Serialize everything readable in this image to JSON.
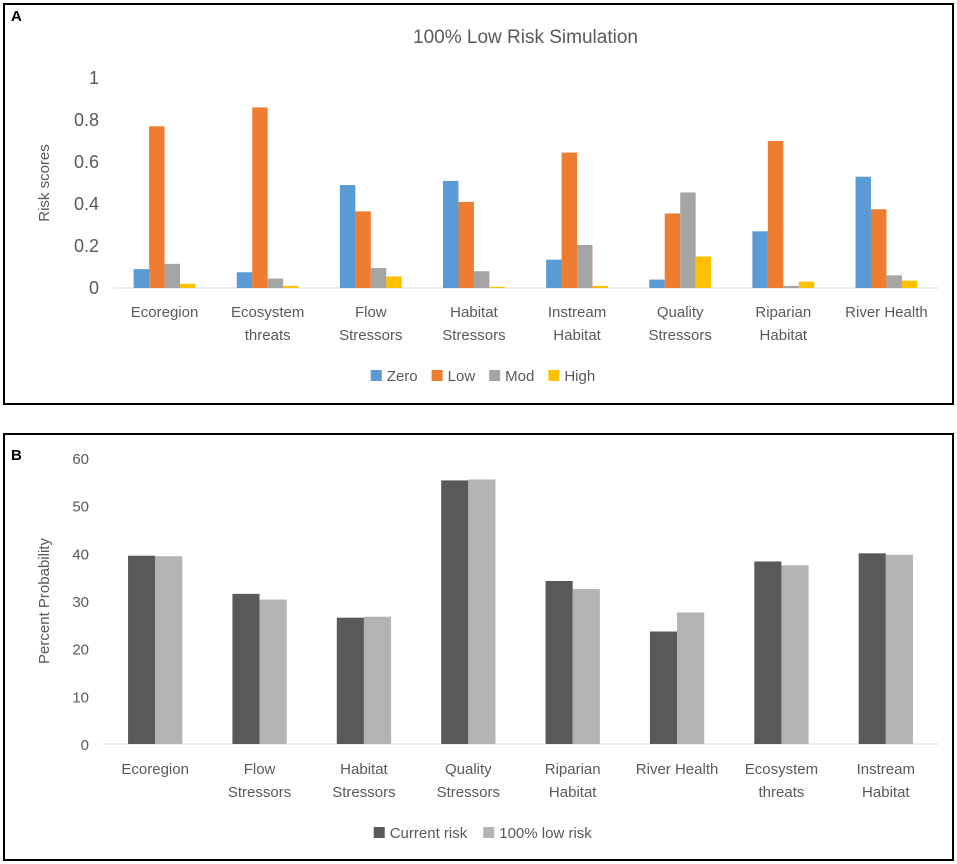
{
  "chart_data": [
    {
      "panel_label": "A",
      "type": "bar",
      "title": "100% Low Risk Simulation",
      "xlabel": "",
      "ylabel": "Risk scores",
      "ylim": [
        0,
        1
      ],
      "yticks": [
        "0",
        "0.2",
        "0.4",
        "0.6",
        "0.8",
        "1"
      ],
      "categories": [
        [
          "Ecoregion"
        ],
        [
          "Ecosystem",
          "threats"
        ],
        [
          "Flow",
          "Stressors"
        ],
        [
          "Habitat",
          "Stressors"
        ],
        [
          "Instream",
          "Habitat"
        ],
        [
          "Quality",
          "Stressors"
        ],
        [
          "Riparian",
          "Habitat"
        ],
        [
          "River Health"
        ]
      ],
      "series": [
        {
          "name": "Zero",
          "color": "#5b9bd5",
          "values": [
            0.09,
            0.075,
            0.49,
            0.51,
            0.135,
            0.04,
            0.27,
            0.53
          ]
        },
        {
          "name": "Low",
          "color": "#ed7d31",
          "values": [
            0.77,
            0.86,
            0.365,
            0.41,
            0.645,
            0.355,
            0.7,
            0.375
          ]
        },
        {
          "name": "Mod",
          "color": "#a5a5a5",
          "values": [
            0.115,
            0.045,
            0.095,
            0.08,
            0.205,
            0.455,
            0.01,
            0.06
          ]
        },
        {
          "name": "High",
          "color": "#ffc000",
          "values": [
            0.02,
            0.01,
            0.055,
            0.005,
            0.01,
            0.15,
            0.03,
            0.035
          ]
        }
      ],
      "legend_position": "bottom",
      "grid": false
    },
    {
      "panel_label": "B",
      "type": "bar",
      "title": "",
      "xlabel": "",
      "ylabel": "Percent Probability",
      "ylim": [
        0,
        60
      ],
      "yticks": [
        "0",
        "10",
        "20",
        "30",
        "40",
        "50",
        "60"
      ],
      "categories": [
        [
          "Ecoregion"
        ],
        [
          "Flow",
          "Stressors"
        ],
        [
          "Habitat",
          "Stressors"
        ],
        [
          "Quality",
          "Stressors"
        ],
        [
          "Riparian",
          "Habitat"
        ],
        [
          "River Health"
        ],
        [
          "Ecosystem",
          "threats"
        ],
        [
          "Instream",
          "Habitat"
        ]
      ],
      "series": [
        {
          "name": "Current risk",
          "color": "#595959",
          "values": [
            39.5,
            31.5,
            26.5,
            55.3,
            34.2,
            23.6,
            38.3,
            40.0
          ]
        },
        {
          "name": "100% low risk",
          "color": "#b3b3b3",
          "values": [
            39.4,
            30.3,
            26.7,
            55.5,
            32.5,
            27.6,
            37.5,
            39.7
          ]
        }
      ],
      "legend_position": "bottom",
      "grid": false
    }
  ]
}
